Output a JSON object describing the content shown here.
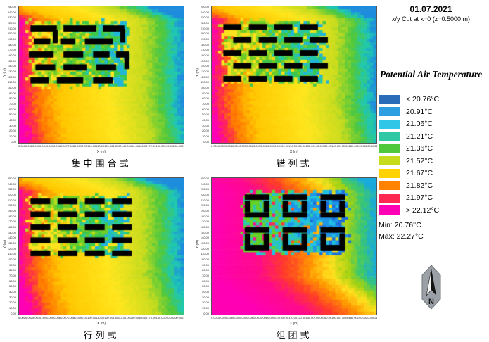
{
  "header": {
    "date": "01.07.2021",
    "cut_info": "x/y Cut at k=0 (z=0.5000 m)"
  },
  "legend": {
    "title": "Potential Air Temperature",
    "entries": [
      {
        "label": "< 20.76°C",
        "color": "#2B6CB8"
      },
      {
        "label": "20.91°C",
        "color": "#2E9EE0"
      },
      {
        "label": "21.06°C",
        "color": "#30C6E8"
      },
      {
        "label": "21.21°C",
        "color": "#2EC8A4"
      },
      {
        "label": "21.36°C",
        "color": "#50C83C"
      },
      {
        "label": "21.52°C",
        "color": "#C8DC1E"
      },
      {
        "label": "21.67°C",
        "color": "#FFD200"
      },
      {
        "label": "21.82°C",
        "color": "#FF8200"
      },
      {
        "label": "21.97°C",
        "color": "#FF2850"
      },
      {
        "label": "> 22.12°C",
        "color": "#FF00B4"
      }
    ],
    "min_label": "Min: 20.76°C",
    "max_label": "Max: 22.27°C"
  },
  "compass": {
    "label": "N"
  },
  "chart_data": {
    "type": "heatmap",
    "unit": "°C",
    "title": "Potential Air Temperature",
    "date": "01.07.2021",
    "cut": "x/y Cut at k=0 (z=0.5000 m)",
    "value_min": 20.76,
    "value_max": 22.27,
    "scale_breaks": [
      20.76,
      20.91,
      21.06,
      21.21,
      21.36,
      21.52,
      21.67,
      21.82,
      21.97,
      22.12
    ],
    "axis": {
      "x_label": "X (m)",
      "y_label": "Y (m)",
      "min": 0,
      "max": 250,
      "step": 10
    },
    "panels": [
      {
        "title": "集中围合式",
        "top_cool": 0.22,
        "bottom_heat": 0.05,
        "hole_p": 0.12,
        "bg_stops": [
          [
            0,
            "#FF00B4"
          ],
          [
            0.05,
            "#FF2850"
          ],
          [
            0.12,
            "#FF7800"
          ],
          [
            0.25,
            "#FFC800"
          ],
          [
            0.55,
            "#FFE61E"
          ],
          [
            0.75,
            "#C8DC1E"
          ],
          [
            0.86,
            "#50C83C"
          ],
          [
            0.94,
            "#1EC8B4"
          ],
          [
            1,
            "#1E8CDC"
          ]
        ],
        "cluster": [
          0.03,
          0.08,
          0.7,
          0.62
        ],
        "halo": [
          "#FFE11E",
          "#B4DC1E",
          "#6ECC28",
          "#3CC84B",
          "#28C8A0",
          "#20B4DC"
        ],
        "buildings": [
          [
            0.07,
            0.14,
            0.16,
            0.045
          ],
          [
            0.27,
            0.14,
            0.2,
            0.045
          ],
          [
            0.51,
            0.14,
            0.13,
            0.045
          ],
          [
            0.09,
            0.235,
            0.1,
            0.045
          ],
          [
            0.25,
            0.235,
            0.09,
            0.045
          ],
          [
            0.4,
            0.235,
            0.17,
            0.045
          ],
          [
            0.06,
            0.33,
            0.15,
            0.045
          ],
          [
            0.27,
            0.33,
            0.12,
            0.045
          ],
          [
            0.45,
            0.33,
            0.1,
            0.045
          ],
          [
            0.59,
            0.33,
            0.08,
            0.045
          ],
          [
            0.1,
            0.425,
            0.12,
            0.045
          ],
          [
            0.27,
            0.425,
            0.14,
            0.045
          ],
          [
            0.47,
            0.425,
            0.12,
            0.045
          ],
          [
            0.07,
            0.52,
            0.11,
            0.045
          ],
          [
            0.23,
            0.52,
            0.16,
            0.045
          ],
          [
            0.45,
            0.52,
            0.12,
            0.045
          ],
          [
            0.205,
            0.17,
            0.03,
            0.1
          ],
          [
            0.615,
            0.165,
            0.03,
            0.1
          ],
          [
            0.64,
            0.36,
            0.03,
            0.1
          ]
        ]
      },
      {
        "title": "错列式",
        "top_cool": 0.22,
        "bottom_heat": 0.05,
        "hole_p": 0.12,
        "bg_stops": [
          [
            0,
            "#FF00B4"
          ],
          [
            0.05,
            "#FF2850"
          ],
          [
            0.12,
            "#FF7800"
          ],
          [
            0.25,
            "#FFC800"
          ],
          [
            0.55,
            "#FFE61E"
          ],
          [
            0.75,
            "#C8DC1E"
          ],
          [
            0.86,
            "#50C83C"
          ],
          [
            0.94,
            "#1EC8B4"
          ],
          [
            1,
            "#1E8CDC"
          ]
        ],
        "cluster": [
          0.03,
          0.08,
          0.72,
          0.59
        ],
        "halo": [
          "#FFE11E",
          "#B4DC1E",
          "#6ECC28",
          "#3CC84B",
          "#28C8A0",
          "#20B4DC"
        ],
        "buildings": [
          [
            0.07,
            0.13,
            0.11,
            0.042
          ],
          [
            0.225,
            0.13,
            0.11,
            0.042
          ],
          [
            0.38,
            0.13,
            0.11,
            0.042
          ],
          [
            0.535,
            0.13,
            0.11,
            0.042
          ],
          [
            0.13,
            0.225,
            0.11,
            0.042
          ],
          [
            0.285,
            0.225,
            0.11,
            0.042
          ],
          [
            0.44,
            0.225,
            0.11,
            0.042
          ],
          [
            0.595,
            0.225,
            0.11,
            0.042
          ],
          [
            0.07,
            0.32,
            0.11,
            0.042
          ],
          [
            0.225,
            0.32,
            0.11,
            0.042
          ],
          [
            0.38,
            0.32,
            0.11,
            0.042
          ],
          [
            0.535,
            0.32,
            0.11,
            0.042
          ],
          [
            0.13,
            0.415,
            0.11,
            0.042
          ],
          [
            0.285,
            0.415,
            0.11,
            0.042
          ],
          [
            0.44,
            0.415,
            0.11,
            0.042
          ],
          [
            0.595,
            0.415,
            0.11,
            0.042
          ],
          [
            0.07,
            0.51,
            0.11,
            0.042
          ],
          [
            0.225,
            0.51,
            0.11,
            0.042
          ],
          [
            0.38,
            0.51,
            0.11,
            0.042
          ],
          [
            0.535,
            0.51,
            0.11,
            0.042
          ]
        ]
      },
      {
        "title": "行列式",
        "top_cool": 0.22,
        "bottom_heat": 0.08,
        "hole_p": 0.12,
        "bg_stops": [
          [
            0,
            "#FF00B4"
          ],
          [
            0.05,
            "#FF2850"
          ],
          [
            0.12,
            "#FF7800"
          ],
          [
            0.25,
            "#FFC800"
          ],
          [
            0.55,
            "#FFE61E"
          ],
          [
            0.75,
            "#C8DC1E"
          ],
          [
            0.86,
            "#50C83C"
          ],
          [
            0.94,
            "#1EC8B4"
          ],
          [
            1,
            "#1E8CDC"
          ]
        ],
        "cluster": [
          0.03,
          0.1,
          0.7,
          0.6
        ],
        "halo": [
          "#FFE11E",
          "#B4DC1E",
          "#6ECC28",
          "#3CC84B",
          "#28C8A0",
          "#20B4DC"
        ],
        "buildings": [
          [
            0.07,
            0.15,
            0.12,
            0.042
          ],
          [
            0.235,
            0.15,
            0.12,
            0.042
          ],
          [
            0.4,
            0.15,
            0.12,
            0.042
          ],
          [
            0.565,
            0.15,
            0.12,
            0.042
          ],
          [
            0.07,
            0.245,
            0.12,
            0.042
          ],
          [
            0.235,
            0.245,
            0.12,
            0.042
          ],
          [
            0.4,
            0.245,
            0.12,
            0.042
          ],
          [
            0.565,
            0.245,
            0.12,
            0.042
          ],
          [
            0.07,
            0.34,
            0.12,
            0.042
          ],
          [
            0.235,
            0.34,
            0.12,
            0.042
          ],
          [
            0.4,
            0.34,
            0.12,
            0.042
          ],
          [
            0.565,
            0.34,
            0.12,
            0.042
          ],
          [
            0.07,
            0.435,
            0.12,
            0.042
          ],
          [
            0.235,
            0.435,
            0.12,
            0.042
          ],
          [
            0.4,
            0.435,
            0.12,
            0.042
          ],
          [
            0.565,
            0.435,
            0.12,
            0.042
          ],
          [
            0.07,
            0.53,
            0.12,
            0.042
          ],
          [
            0.235,
            0.53,
            0.12,
            0.042
          ],
          [
            0.4,
            0.53,
            0.12,
            0.042
          ],
          [
            0.565,
            0.53,
            0.12,
            0.042
          ]
        ]
      },
      {
        "title": "组团式",
        "top_cool": 0.1,
        "bottom_heat": 0.3,
        "hole_p": 0.1,
        "bg_stops": [
          [
            0,
            "#FF00B4"
          ],
          [
            0.28,
            "#FF0A8C"
          ],
          [
            0.45,
            "#FF3C28"
          ],
          [
            0.6,
            "#FF9600"
          ],
          [
            0.72,
            "#FFE11E"
          ],
          [
            0.83,
            "#A0D214"
          ],
          [
            0.91,
            "#3CC86E"
          ],
          [
            1,
            "#18AADC"
          ]
        ],
        "cluster": [
          0.15,
          0.07,
          0.86,
          0.58
        ],
        "halo": [
          "#64D228",
          "#2FC9A8",
          "#20C0E0",
          "#1E96E6",
          "#1E6EDC"
        ],
        "buildings": [
          [
            0.2,
            0.12,
            0.15,
            0.04
          ],
          [
            0.2,
            0.25,
            0.15,
            0.04
          ],
          [
            0.2,
            0.165,
            0.035,
            0.085
          ],
          [
            0.315,
            0.165,
            0.035,
            0.085
          ],
          [
            0.43,
            0.12,
            0.15,
            0.04
          ],
          [
            0.43,
            0.25,
            0.15,
            0.04
          ],
          [
            0.43,
            0.165,
            0.035,
            0.085
          ],
          [
            0.545,
            0.165,
            0.035,
            0.085
          ],
          [
            0.66,
            0.12,
            0.15,
            0.04
          ],
          [
            0.66,
            0.25,
            0.15,
            0.04
          ],
          [
            0.66,
            0.165,
            0.035,
            0.085
          ],
          [
            0.775,
            0.165,
            0.035,
            0.085
          ],
          [
            0.2,
            0.36,
            0.15,
            0.04
          ],
          [
            0.2,
            0.49,
            0.15,
            0.04
          ],
          [
            0.2,
            0.405,
            0.035,
            0.085
          ],
          [
            0.315,
            0.405,
            0.035,
            0.085
          ],
          [
            0.43,
            0.36,
            0.15,
            0.04
          ],
          [
            0.43,
            0.49,
            0.15,
            0.04
          ],
          [
            0.43,
            0.405,
            0.035,
            0.085
          ],
          [
            0.545,
            0.405,
            0.035,
            0.085
          ],
          [
            0.66,
            0.36,
            0.15,
            0.04
          ],
          [
            0.66,
            0.49,
            0.15,
            0.04
          ],
          [
            0.66,
            0.405,
            0.035,
            0.085
          ],
          [
            0.775,
            0.405,
            0.035,
            0.085
          ]
        ]
      }
    ]
  }
}
